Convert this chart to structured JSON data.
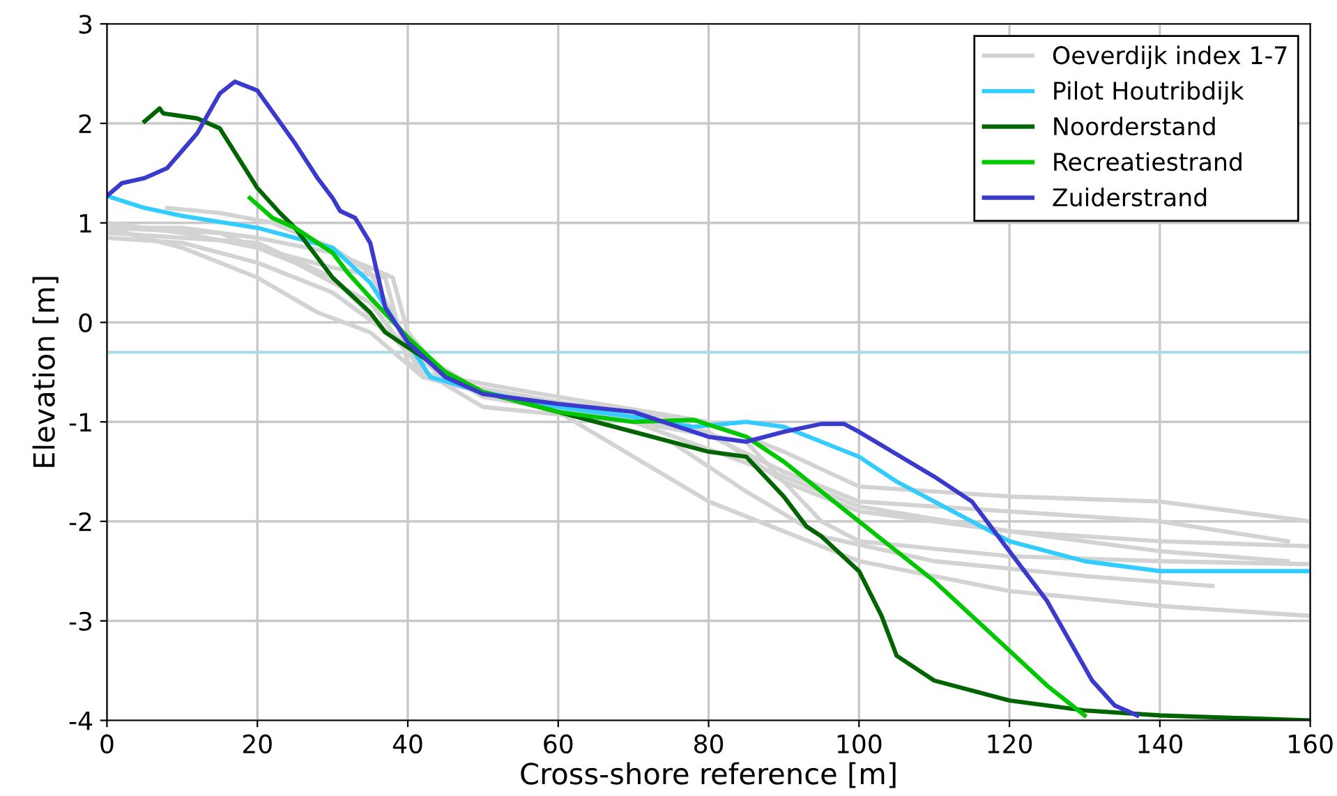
{
  "chart_data": {
    "type": "line",
    "xlabel": "Cross-shore reference [m]",
    "ylabel": "Elevation [m]",
    "xlim": [
      0,
      160
    ],
    "ylim": [
      -4,
      3
    ],
    "xticks": [
      0,
      20,
      40,
      60,
      80,
      100,
      120,
      140,
      160
    ],
    "yticks": [
      -4,
      -3,
      -2,
      -1,
      0,
      1,
      2,
      3
    ],
    "grid": true,
    "legend": "top right",
    "line_style": "solid",
    "marker": "none",
    "ref_lines": [
      {
        "axis": "y",
        "value": -0.3,
        "color": "#a8dce8"
      }
    ],
    "series": [
      {
        "name": "Oeverdijk index 1-7",
        "color": "#d3d3d3",
        "x": [
          0,
          10,
          20,
          30,
          35,
          38,
          40,
          45,
          60,
          80,
          90,
          100,
          120,
          140,
          160
        ],
        "values": [
          0.95,
          0.95,
          0.85,
          0.7,
          0.55,
          0.45,
          -0.1,
          -0.55,
          -0.75,
          -1.0,
          -1.3,
          -1.65,
          -1.75,
          -1.8,
          -2.0
        ]
      },
      {
        "color": "#d3d3d3",
        "x": [
          8,
          15,
          22,
          30,
          35,
          40,
          45,
          60,
          75,
          90,
          100,
          120,
          140,
          157
        ],
        "values": [
          1.15,
          1.1,
          1.0,
          0.75,
          0.5,
          -0.2,
          -0.6,
          -0.8,
          -0.95,
          -1.5,
          -1.8,
          -1.9,
          -2.0,
          -2.2
        ]
      },
      {
        "color": "#d3d3d3",
        "x": [
          0,
          10,
          20,
          30,
          40,
          50,
          60,
          80,
          90,
          100,
          120,
          140,
          157
        ],
        "values": [
          0.85,
          0.8,
          0.6,
          0.3,
          -0.25,
          -0.7,
          -0.85,
          -1.1,
          -1.6,
          -1.9,
          -2.1,
          -2.3,
          -2.4
        ]
      },
      {
        "color": "#d3d3d3",
        "x": [
          0,
          10,
          20,
          30,
          40,
          50,
          70,
          85,
          95,
          100,
          120,
          140,
          160
        ],
        "values": [
          0.9,
          0.85,
          0.8,
          0.45,
          -0.3,
          -0.75,
          -1.0,
          -1.2,
          -2.0,
          -2.2,
          -2.35,
          -2.4,
          -2.43
        ]
      },
      {
        "color": "#d3d3d3",
        "x": [
          0,
          15,
          25,
          35,
          42,
          55,
          75,
          85,
          95,
          110,
          130,
          147
        ],
        "values": [
          0.95,
          0.9,
          0.6,
          0.2,
          -0.5,
          -0.8,
          -1.2,
          -1.7,
          -2.15,
          -2.4,
          -2.55,
          -2.65
        ]
      },
      {
        "color": "#d3d3d3",
        "x": [
          0,
          10,
          20,
          28,
          35,
          42,
          60,
          80,
          100,
          120,
          140,
          160
        ],
        "values": [
          0.95,
          0.75,
          0.45,
          0.1,
          -0.1,
          -0.55,
          -0.9,
          -1.8,
          -2.4,
          -2.7,
          -2.85,
          -2.95
        ]
      },
      {
        "color": "#d3d3d3",
        "x": [
          0,
          10,
          20,
          30,
          37,
          40,
          50,
          70,
          90,
          100,
          120,
          140,
          160
        ],
        "values": [
          1.0,
          0.9,
          0.75,
          0.55,
          0.45,
          -0.4,
          -0.85,
          -1.0,
          -1.55,
          -1.85,
          -2.1,
          -2.2,
          -2.25
        ]
      },
      {
        "name": "Pilot Houtribdijk",
        "color": "#33ccff",
        "x": [
          0,
          5,
          10,
          20,
          30,
          35,
          40,
          43,
          50,
          60,
          70,
          78,
          85,
          90,
          100,
          105,
          110,
          120,
          130,
          140,
          160
        ],
        "values": [
          1.27,
          1.15,
          1.07,
          0.95,
          0.75,
          0.4,
          -0.2,
          -0.55,
          -0.7,
          -0.85,
          -0.95,
          -1.05,
          -1.0,
          -1.05,
          -1.35,
          -1.6,
          -1.8,
          -2.2,
          -2.4,
          -2.5,
          -2.5
        ]
      },
      {
        "name": "Noorderstand",
        "color": "#006400",
        "x": [
          5,
          7,
          7.5,
          12,
          15,
          20,
          23,
          25,
          30,
          35,
          37,
          40,
          45,
          50,
          60,
          70,
          80,
          85,
          90,
          93,
          95,
          100,
          103,
          105,
          110,
          120,
          130,
          140,
          160
        ],
        "values": [
          2.02,
          2.15,
          2.1,
          2.05,
          1.95,
          1.35,
          1.1,
          0.95,
          0.45,
          0.1,
          -0.1,
          -0.25,
          -0.5,
          -0.7,
          -0.9,
          -1.1,
          -1.3,
          -1.35,
          -1.75,
          -2.05,
          -2.15,
          -2.5,
          -2.95,
          -3.35,
          -3.6,
          -3.8,
          -3.9,
          -3.95,
          -4.0
        ]
      },
      {
        "name": "Recreatiestrand",
        "color": "#00c800",
        "x": [
          19,
          22,
          25,
          30,
          32,
          35,
          40,
          45,
          50,
          60,
          70,
          78,
          85,
          90,
          100,
          110,
          120,
          125,
          130
        ],
        "values": [
          1.25,
          1.05,
          0.95,
          0.7,
          0.5,
          0.25,
          -0.15,
          -0.5,
          -0.7,
          -0.9,
          -1.0,
          -0.98,
          -1.15,
          -1.4,
          -2.0,
          -2.6,
          -3.3,
          -3.65,
          -3.95
        ]
      },
      {
        "name": "Zuiderstrand",
        "color": "#3a3acc",
        "x": [
          0,
          2,
          5,
          8,
          12,
          15,
          17,
          20,
          25,
          28,
          30,
          31,
          33,
          35,
          37,
          40,
          45,
          50,
          60,
          70,
          80,
          85,
          90,
          95,
          98,
          100,
          110,
          115,
          120,
          125,
          128,
          131,
          134,
          137
        ],
        "values": [
          1.27,
          1.4,
          1.45,
          1.55,
          1.9,
          2.3,
          2.42,
          2.33,
          1.8,
          1.45,
          1.25,
          1.12,
          1.05,
          0.8,
          0.15,
          -0.2,
          -0.55,
          -0.72,
          -0.82,
          -0.9,
          -1.15,
          -1.2,
          -1.1,
          -1.02,
          -1.02,
          -1.1,
          -1.55,
          -1.8,
          -2.3,
          -2.8,
          -3.2,
          -3.6,
          -3.85,
          -3.95
        ]
      }
    ]
  }
}
